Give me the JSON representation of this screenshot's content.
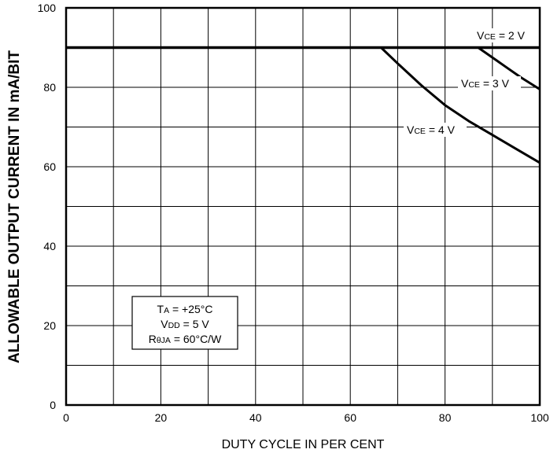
{
  "chart_data": {
    "type": "line",
    "xlabel": "DUTY CYCLE IN PER CENT",
    "ylabel": "ALLOWABLE OUTPUT CURRENT IN mA/BIT",
    "xlim": [
      0,
      100
    ],
    "ylim": [
      0,
      100
    ],
    "x_ticks": [
      "0",
      "20",
      "40",
      "60",
      "80",
      "100"
    ],
    "y_ticks": [
      "0",
      "20",
      "40",
      "60",
      "80",
      "100"
    ],
    "grid": true,
    "series": [
      {
        "name": "VCE = 2 V",
        "x": [
          0,
          10,
          20,
          30,
          40,
          50,
          60,
          70,
          80,
          90,
          100
        ],
        "y": [
          90,
          90,
          90,
          90,
          90,
          90,
          90,
          90,
          90,
          90,
          90
        ]
      },
      {
        "name": "VCE = 3 V",
        "x": [
          87,
          90,
          93,
          96,
          100
        ],
        "y": [
          90,
          87.5,
          85,
          82.5,
          79.5
        ]
      },
      {
        "name": "VCE = 4 V",
        "x": [
          66.5,
          70,
          75,
          80,
          85,
          90,
          95,
          100
        ],
        "y": [
          90,
          86,
          80.5,
          75.5,
          71.5,
          68,
          64.5,
          61
        ]
      }
    ],
    "annotations": {
      "vce2": {
        "main": "V",
        "sub": "CE",
        "rest": " = 2 V"
      },
      "vce3": {
        "main": "V",
        "sub": "CE",
        "rest": " = 3 V"
      },
      "vce4": {
        "main": "V",
        "sub": "CE",
        "rest": " = 4 V"
      }
    },
    "conditions": [
      {
        "main": "T",
        "sub": "A",
        "rest": " = +25°C"
      },
      {
        "main": "V",
        "sub": "DD",
        "rest": " = 5 V"
      },
      {
        "main": "R",
        "sub": "θJA",
        "rest": " = 60°C/W"
      }
    ]
  }
}
